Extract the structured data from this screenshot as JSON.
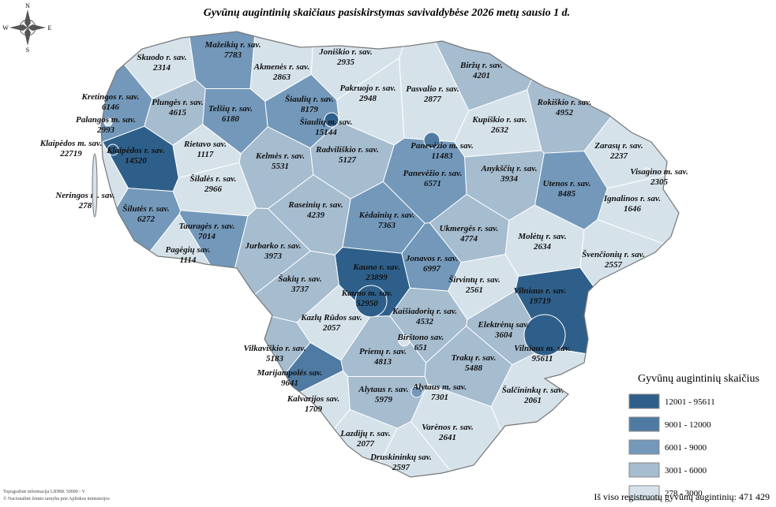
{
  "title": "Gyvūnų augintinių skaičiaus pasiskirstymas savivaldybėse 2026 metų sausio 1 d.",
  "compass": {
    "n": "N",
    "e": "E",
    "s": "S",
    "w": "W"
  },
  "regions": [
    {
      "name": "Mažeikių r. sav.",
      "value": 7783,
      "color": "#7398ba"
    },
    {
      "name": "Skuodo r. sav.",
      "value": 2314,
      "color": "#d6e2ea"
    },
    {
      "name": "Akmenės r. sav.",
      "value": 2863,
      "color": "#d6e2ea"
    },
    {
      "name": "Joniškio r. sav.",
      "value": 2935,
      "color": "#d6e2ea"
    },
    {
      "name": "Biržų r. sav.",
      "value": 4201,
      "color": "#a6bccf"
    },
    {
      "name": "Pasvalio r. sav.",
      "value": 2877,
      "color": "#d6e2ea"
    },
    {
      "name": "Pakruojo r. sav.",
      "value": 2948,
      "color": "#d6e2ea"
    },
    {
      "name": "Kretingos r. sav.",
      "value": 6146,
      "color": "#7398ba"
    },
    {
      "name": "Plungės r. sav.",
      "value": 4615,
      "color": "#a6bccf"
    },
    {
      "name": "Telšių r. sav.",
      "value": 6180,
      "color": "#7398ba"
    },
    {
      "name": "Šiaulių r. sav.",
      "value": 8179,
      "color": "#7398ba"
    },
    {
      "name": "Šiaulių m. sav.",
      "value": 15144,
      "color": "#2e5f8a"
    },
    {
      "name": "Rokiškio r. sav.",
      "value": 4952,
      "color": "#a6bccf"
    },
    {
      "name": "Kupiškio r. sav.",
      "value": 2632,
      "color": "#d6e2ea"
    },
    {
      "name": "Palangos m. sav.",
      "value": 2993,
      "color": "#d6e2ea"
    },
    {
      "name": "Klaipėdos m. sav.",
      "value": 22719,
      "color": "#2e5f8a"
    },
    {
      "name": "Klaipėdos r. sav.",
      "value": 14520,
      "color": "#2e5f8a"
    },
    {
      "name": "Rietavo sav.",
      "value": 1117,
      "color": "#d6e2ea"
    },
    {
      "name": "Kelmės r. sav.",
      "value": 5531,
      "color": "#a6bccf"
    },
    {
      "name": "Radviliškio r. sav.",
      "value": 5127,
      "color": "#a6bccf"
    },
    {
      "name": "Panevėžio m. sav.",
      "value": 11483,
      "color": "#4f7ba3"
    },
    {
      "name": "Panevėžio r. sav.",
      "value": 6571,
      "color": "#7398ba"
    },
    {
      "name": "Zarasų r. sav.",
      "value": 2237,
      "color": "#d6e2ea"
    },
    {
      "name": "Anykščių r. sav.",
      "value": 3934,
      "color": "#a6bccf"
    },
    {
      "name": "Visagino m. sav.",
      "value": 2305,
      "color": "#d6e2ea"
    },
    {
      "name": "Utenos r. sav.",
      "value": 8485,
      "color": "#7398ba"
    },
    {
      "name": "Ignalinos r. sav.",
      "value": 1646,
      "color": "#d6e2ea"
    },
    {
      "name": "Šilalės r. sav.",
      "value": 2966,
      "color": "#d6e2ea"
    },
    {
      "name": "Neringos m. sav.",
      "value": 278,
      "color": "#d6e2ea"
    },
    {
      "name": "Šilutės r. sav.",
      "value": 6272,
      "color": "#7398ba"
    },
    {
      "name": "Raseinių r. sav.",
      "value": 4239,
      "color": "#a6bccf"
    },
    {
      "name": "Kėdainių r. sav.",
      "value": 7363,
      "color": "#7398ba"
    },
    {
      "name": "Ukmergės r. sav.",
      "value": 4774,
      "color": "#a6bccf"
    },
    {
      "name": "Tauragės r. sav.",
      "value": 7014,
      "color": "#7398ba"
    },
    {
      "name": "Molėtų r. sav.",
      "value": 2634,
      "color": "#d6e2ea"
    },
    {
      "name": "Jurbarko r. sav.",
      "value": 3973,
      "color": "#a6bccf"
    },
    {
      "name": "Pagėgių sav.",
      "value": 1114,
      "color": "#d6e2ea"
    },
    {
      "name": "Švenčionių r. sav.",
      "value": 2557,
      "color": "#d6e2ea"
    },
    {
      "name": "Jonavos r. sav.",
      "value": 6997,
      "color": "#7398ba"
    },
    {
      "name": "Kauno r. sav.",
      "value": 23899,
      "color": "#2e5f8a"
    },
    {
      "name": "Šakių r. sav.",
      "value": 3737,
      "color": "#a6bccf"
    },
    {
      "name": "Širvintų r. sav.",
      "value": 2561,
      "color": "#d6e2ea"
    },
    {
      "name": "Vilniaus r. sav.",
      "value": 19719,
      "color": "#2e5f8a"
    },
    {
      "name": "Kauno m. sav.",
      "value": 52950,
      "color": "#2e5f8a"
    },
    {
      "name": "Kaišiadorių r. sav.",
      "value": 4532,
      "color": "#a6bccf"
    },
    {
      "name": "Kazlų Rūdos sav.",
      "value": 2057,
      "color": "#d6e2ea"
    },
    {
      "name": "Elektrėnų sav.",
      "value": 3604,
      "color": "#a6bccf"
    },
    {
      "name": "Vilniaus m. sav.",
      "value": 95611,
      "color": "#2e5f8a"
    },
    {
      "name": "Birštono sav.",
      "value": 651,
      "color": "#d6e2ea"
    },
    {
      "name": "Vilkaviškio r. sav.",
      "value": 5183,
      "color": "#a6bccf"
    },
    {
      "name": "Prienų r. sav.",
      "value": 4813,
      "color": "#a6bccf"
    },
    {
      "name": "Trakų r. sav.",
      "value": 5488,
      "color": "#a6bccf"
    },
    {
      "name": "Marijampolės sav.",
      "value": 9641,
      "color": "#4f7ba3"
    },
    {
      "name": "Alytaus r. sav.",
      "value": 5979,
      "color": "#a6bccf"
    },
    {
      "name": "Alytaus m. sav.",
      "value": 7301,
      "color": "#7398ba"
    },
    {
      "name": "Šalčininkų r. sav.",
      "value": 2061,
      "color": "#d6e2ea"
    },
    {
      "name": "Kalvarijos sav.",
      "value": 1709,
      "color": "#d6e2ea"
    },
    {
      "name": "Varėnos r. sav.",
      "value": 2641,
      "color": "#d6e2ea"
    },
    {
      "name": "Lazdijų r. sav.",
      "value": 2077,
      "color": "#d6e2ea"
    },
    {
      "name": "Druskininkų sav.",
      "value": 2597,
      "color": "#d6e2ea"
    }
  ],
  "legend": {
    "title": "Gyvūnų augintinių skaičius",
    "classes": [
      {
        "label": "12001 - 95611",
        "color": "#2e5f8a"
      },
      {
        "label": "9001 - 12000",
        "color": "#4f7ba3"
      },
      {
        "label": "6001 - 9000",
        "color": "#7398ba"
      },
      {
        "label": "3001 - 6000",
        "color": "#a6bccf"
      },
      {
        "label": "278 - 3000",
        "color": "#d6e2ea"
      }
    ]
  },
  "total": "Iš viso registruotų gyvūnų augintinių: 471 429",
  "footnotes": [
    "Topografinė informacija LIDBK 50000 - V",
    "© Nacionalinė žemės tarnyba prie Aplinkos ministerijos"
  ]
}
